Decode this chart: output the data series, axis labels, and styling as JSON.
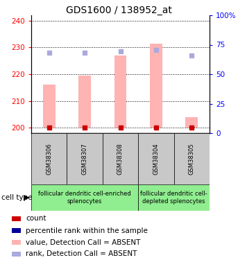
{
  "title": "GDS1600 / 138952_at",
  "samples": [
    "GSM38306",
    "GSM38307",
    "GSM38308",
    "GSM38304",
    "GSM38305"
  ],
  "bar_values": [
    216.0,
    219.5,
    227.0,
    231.5,
    204.0
  ],
  "rank_values": [
    228.0,
    228.0,
    228.5,
    229.0,
    227.0
  ],
  "bar_bottom": 200,
  "ylim_left": [
    198,
    242
  ],
  "ylim_right": [
    0,
    100
  ],
  "yticks_left": [
    200,
    210,
    220,
    230,
    240
  ],
  "yticks_right": [
    0,
    25,
    50,
    75,
    100
  ],
  "bar_color": "#FFB3B3",
  "rank_color": "#AAAADD",
  "count_color": "#CC0000",
  "blue_color": "#000099",
  "title_fontsize": 10,
  "tick_fontsize": 7.5,
  "sample_fontsize": 6,
  "cell_type_fontsize": 6,
  "legend_fontsize": 7.5,
  "group1_label": "follicular dendritic cell-enriched\nsplenocytes",
  "group2_label": "follicular dendritic cell-\ndepleted splenocytes",
  "group_color": "#90EE90",
  "gray_color": "#C8C8C8",
  "legend_labels": [
    "count",
    "percentile rank within the sample",
    "value, Detection Call = ABSENT",
    "rank, Detection Call = ABSENT"
  ]
}
